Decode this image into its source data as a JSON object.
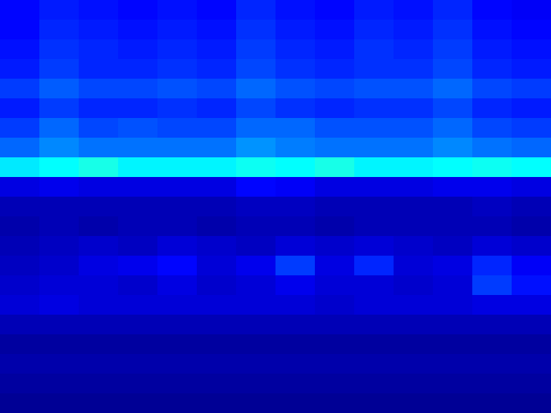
{
  "chart_data": {
    "type": "heatmap",
    "xlim": [
      0,
      14
    ],
    "ylim": [
      0,
      21
    ],
    "tick_labels": false,
    "value_range": [
      0.07,
      1
    ],
    "cells": [
      [
        0.19,
        0.21,
        0.2,
        0.19,
        0.2,
        0.19,
        0.22,
        0.2,
        0.19,
        0.21,
        0.2,
        0.22,
        0.19,
        0.18
      ],
      [
        0.19,
        0.22,
        0.21,
        0.2,
        0.21,
        0.2,
        0.23,
        0.21,
        0.2,
        0.22,
        0.21,
        0.23,
        0.2,
        0.19
      ],
      [
        0.2,
        0.23,
        0.22,
        0.21,
        0.22,
        0.21,
        0.24,
        0.22,
        0.21,
        0.23,
        0.22,
        0.24,
        0.21,
        0.2
      ],
      [
        0.21,
        0.24,
        0.22,
        0.22,
        0.23,
        0.22,
        0.25,
        0.23,
        0.22,
        0.23,
        0.23,
        0.25,
        0.22,
        0.21
      ],
      [
        0.24,
        0.27,
        0.25,
        0.25,
        0.26,
        0.25,
        0.28,
        0.26,
        0.25,
        0.26,
        0.26,
        0.28,
        0.25,
        0.24
      ],
      [
        0.21,
        0.24,
        0.22,
        0.22,
        0.23,
        0.22,
        0.25,
        0.23,
        0.22,
        0.23,
        0.23,
        0.25,
        0.22,
        0.21
      ],
      [
        0.24,
        0.28,
        0.25,
        0.26,
        0.25,
        0.25,
        0.28,
        0.28,
        0.26,
        0.26,
        0.26,
        0.28,
        0.25,
        0.24
      ],
      [
        0.28,
        0.31,
        0.29,
        0.29,
        0.29,
        0.29,
        0.32,
        0.3,
        0.29,
        0.29,
        0.29,
        0.31,
        0.29,
        0.28
      ],
      [
        0.4,
        0.42,
        0.44,
        0.41,
        0.41,
        0.41,
        0.43,
        0.42,
        0.44,
        0.41,
        0.41,
        0.42,
        0.43,
        0.42
      ],
      [
        0.16,
        0.17,
        0.16,
        0.16,
        0.16,
        0.16,
        0.19,
        0.18,
        0.16,
        0.16,
        0.16,
        0.17,
        0.17,
        0.16
      ],
      [
        0.12,
        0.12,
        0.12,
        0.12,
        0.12,
        0.12,
        0.13,
        0.13,
        0.12,
        0.12,
        0.12,
        0.12,
        0.13,
        0.12
      ],
      [
        0.11,
        0.12,
        0.11,
        0.12,
        0.12,
        0.11,
        0.12,
        0.12,
        0.11,
        0.12,
        0.12,
        0.12,
        0.12,
        0.11
      ],
      [
        0.12,
        0.13,
        0.14,
        0.13,
        0.15,
        0.14,
        0.13,
        0.15,
        0.14,
        0.15,
        0.14,
        0.13,
        0.15,
        0.14
      ],
      [
        0.13,
        0.14,
        0.16,
        0.17,
        0.19,
        0.15,
        0.17,
        0.24,
        0.16,
        0.22,
        0.15,
        0.16,
        0.22,
        0.18
      ],
      [
        0.14,
        0.15,
        0.15,
        0.14,
        0.16,
        0.14,
        0.15,
        0.17,
        0.15,
        0.15,
        0.14,
        0.15,
        0.24,
        0.2
      ],
      [
        0.15,
        0.16,
        0.15,
        0.15,
        0.15,
        0.15,
        0.15,
        0.15,
        0.14,
        0.15,
        0.15,
        0.15,
        0.16,
        0.16
      ],
      [
        0.12,
        0.12,
        0.12,
        0.12,
        0.12,
        0.12,
        0.12,
        0.12,
        0.12,
        0.12,
        0.12,
        0.12,
        0.12,
        0.12
      ],
      [
        0.1,
        0.1,
        0.1,
        0.1,
        0.1,
        0.1,
        0.1,
        0.1,
        0.1,
        0.1,
        0.1,
        0.1,
        0.1,
        0.1
      ],
      [
        0.11,
        0.11,
        0.11,
        0.11,
        0.11,
        0.11,
        0.11,
        0.11,
        0.11,
        0.11,
        0.11,
        0.11,
        0.11,
        0.11
      ],
      [
        0.1,
        0.1,
        0.1,
        0.1,
        0.1,
        0.1,
        0.1,
        0.1,
        0.1,
        0.1,
        0.1,
        0.1,
        0.1,
        0.1
      ],
      [
        0.09,
        0.09,
        0.09,
        0.09,
        0.09,
        0.09,
        0.09,
        0.09,
        0.09,
        0.09,
        0.09,
        0.09,
        0.09,
        0.09
      ]
    ]
  }
}
